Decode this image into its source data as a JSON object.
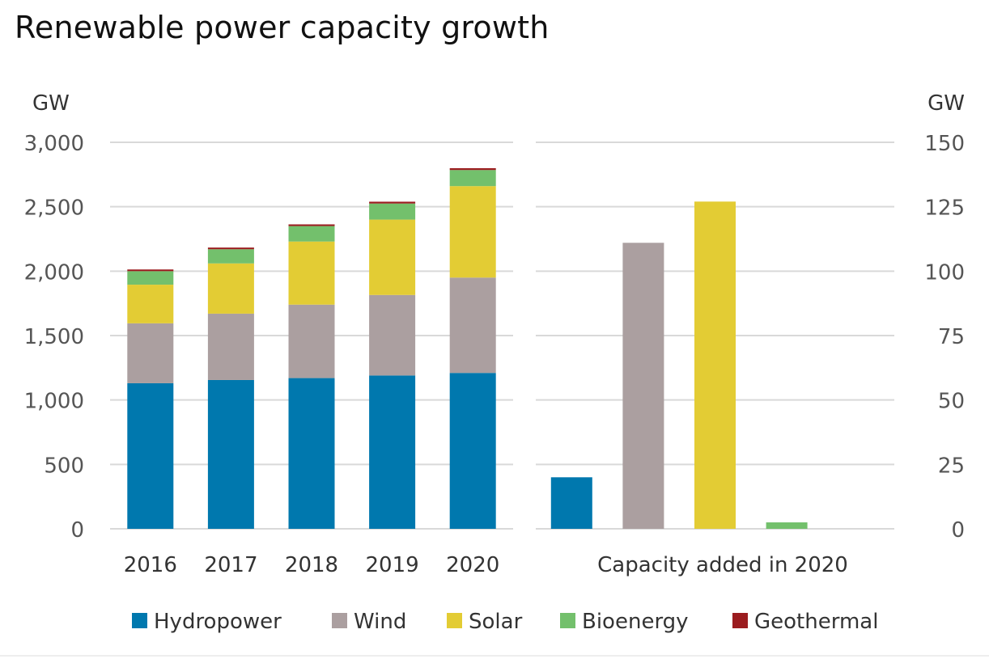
{
  "chart_title": "Renewable power capacity growth",
  "colors": {
    "Hydropower": "#0078ae",
    "Wind": "#ab9fa0",
    "Solar": "#e3cc34",
    "Bioenergy": "#73c06c",
    "Geothermal": "#9b1c1f"
  },
  "chart_data": [
    {
      "type": "bar",
      "stacked": true,
      "ylabel": "GW",
      "ylim": [
        0,
        3000
      ],
      "yticks": [
        "0",
        "500",
        "1,000",
        "1,500",
        "2,000",
        "2,500",
        "3,000"
      ],
      "categories": [
        "2016",
        "2017",
        "2018",
        "2019",
        "2020"
      ],
      "series": [
        {
          "name": "Hydropower",
          "values": [
            1130,
            1155,
            1170,
            1190,
            1210
          ]
        },
        {
          "name": "Wind",
          "values": [
            465,
            515,
            570,
            625,
            740
          ]
        },
        {
          "name": "Solar",
          "values": [
            300,
            390,
            490,
            585,
            710
          ]
        },
        {
          "name": "Bioenergy",
          "values": [
            105,
            110,
            120,
            125,
            125
          ]
        },
        {
          "name": "Geothermal",
          "values": [
            13,
            13,
            13,
            14,
            14
          ]
        }
      ],
      "legend": "bottom"
    },
    {
      "type": "bar",
      "ylabel": "GW",
      "ylim": [
        0,
        150
      ],
      "yticks": [
        "0",
        "25",
        "50",
        "75",
        "100",
        "125",
        "150"
      ],
      "xlabel": "Capacity added in 2020",
      "categories": [
        "Hydropower",
        "Wind",
        "Solar",
        "Bioenergy",
        "Geothermal"
      ],
      "values": [
        20,
        111,
        127,
        2.5,
        0
      ]
    }
  ]
}
